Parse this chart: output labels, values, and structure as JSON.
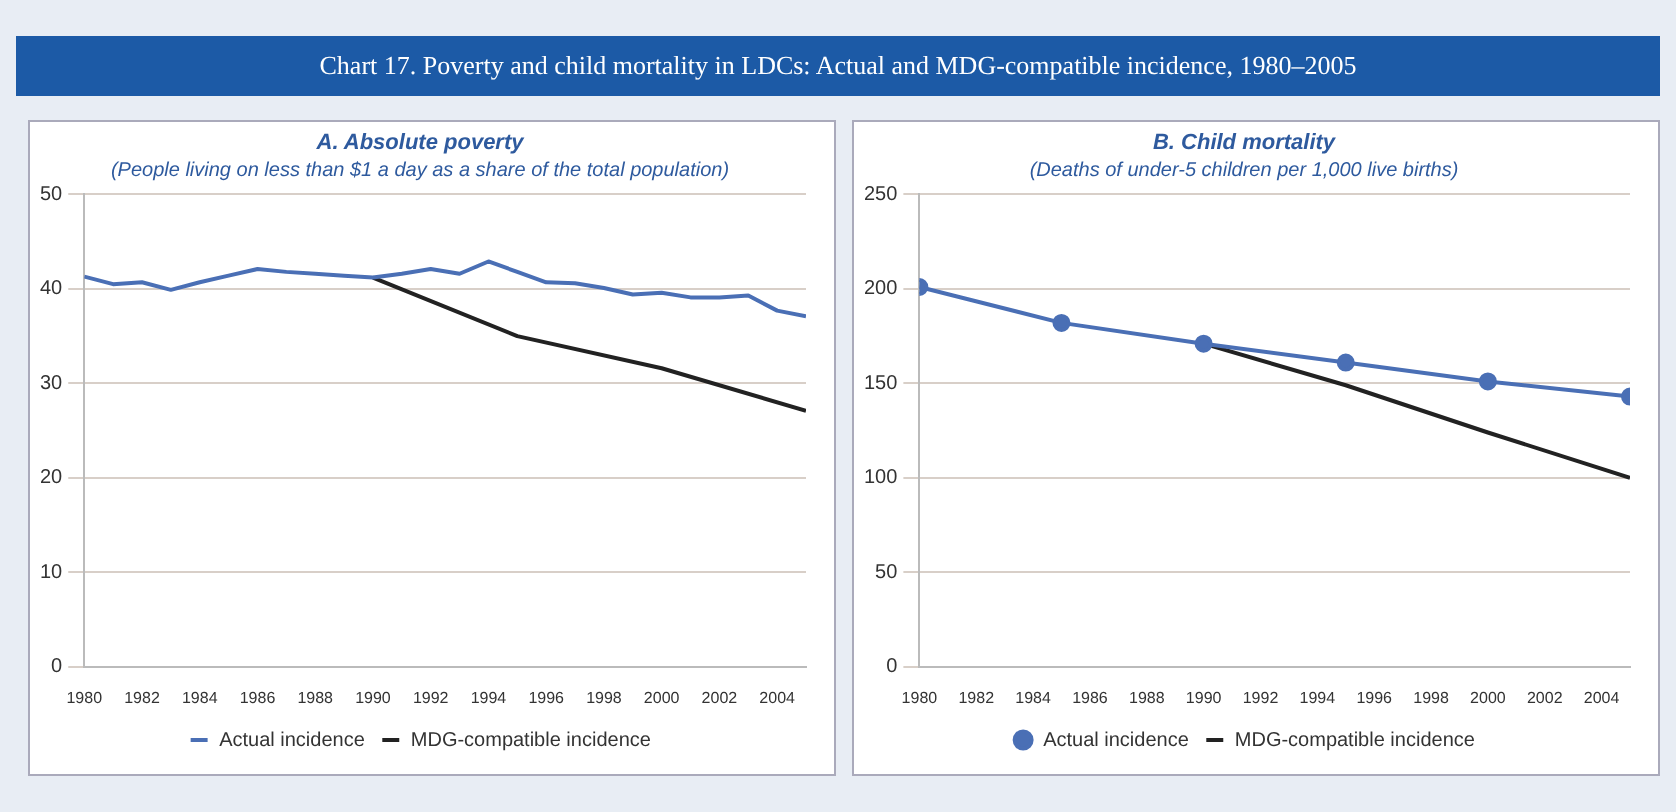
{
  "chart_data": [
    {
      "type": "line",
      "title": "A. Absolute poverty",
      "subtitle": "(People living on less than $1 a day as a share of the total population)",
      "annotations": [
        "Chart 17.  Poverty and child mortality in LDCs: Actual and MDG-compatible incidence, 1980–2005"
      ],
      "xlim": [
        1980,
        2005
      ],
      "xticks": [
        1980,
        1982,
        1984,
        1986,
        1988,
        1990,
        1992,
        1994,
        1996,
        1998,
        2000,
        2002,
        2004
      ],
      "ylim": [
        0,
        50
      ],
      "yticks": [
        0,
        10,
        20,
        30,
        40,
        50
      ],
      "grid": "y",
      "legend": "bottom",
      "marker": "none",
      "series": [
        {
          "name": "Actual incidence",
          "color": "#4a6fb5",
          "x": [
            1980,
            1981,
            1982,
            1983,
            1984,
            1985,
            1986,
            1987,
            1988,
            1989,
            1990,
            1991,
            1992,
            1993,
            1994,
            1995,
            1996,
            1997,
            1998,
            1999,
            2000,
            2001,
            2002,
            2003,
            2004,
            2005
          ],
          "values": [
            41.3,
            40.5,
            40.7,
            39.9,
            40.7,
            41.4,
            42.1,
            41.8,
            41.6,
            41.4,
            41.2,
            41.6,
            42.1,
            41.6,
            42.9,
            41.8,
            40.7,
            40.6,
            40.1,
            39.4,
            39.6,
            39.1,
            39.1,
            39.3,
            37.7,
            37.1
          ]
        },
        {
          "name": "MDG-compatible incidence",
          "color": "#222222",
          "x": [
            1990,
            1995,
            2000,
            2005
          ],
          "values": [
            41.2,
            35.0,
            31.6,
            27.1
          ]
        }
      ]
    },
    {
      "type": "line",
      "title": "B. Child mortality",
      "subtitle": "(Deaths of under-5 children per 1,000 live births)",
      "xlim": [
        1980,
        2005
      ],
      "xticks": [
        1980,
        1982,
        1984,
        1986,
        1988,
        1990,
        1992,
        1994,
        1996,
        1998,
        2000,
        2002,
        2004
      ],
      "ylim": [
        0,
        250
      ],
      "yticks": [
        0,
        50,
        100,
        150,
        200,
        250
      ],
      "grid": "y",
      "legend": "bottom",
      "series": [
        {
          "name": "Actual incidence",
          "color": "#4a6fb5",
          "marker": "circle",
          "x": [
            1980,
            1985,
            1990,
            1995,
            2000,
            2005
          ],
          "values": [
            201,
            182,
            171,
            161,
            151,
            143
          ]
        },
        {
          "name": "MDG-compatible incidence",
          "color": "#222222",
          "marker": "none",
          "x": [
            1990,
            1995,
            2000,
            2005
          ],
          "values": [
            171,
            149,
            124,
            100
          ]
        }
      ]
    }
  ]
}
